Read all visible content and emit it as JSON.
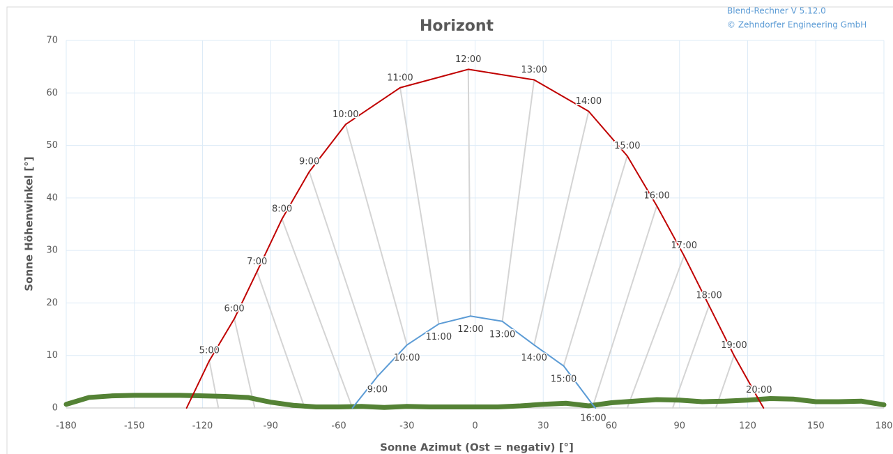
{
  "chart_data": {
    "type": "line",
    "title": "Horizont",
    "header_lines": [
      "Blend-Rechner   V 5.12.0",
      "© Zehndorfer Engineering GmbH"
    ],
    "xlabel": "Sonne Azimut (Ost = negativ) [°]",
    "ylabel": "Sonne Höhenwinkel [°]",
    "xlim": [
      -180,
      180
    ],
    "ylim": [
      0,
      70
    ],
    "xticks": [
      -180,
      -150,
      -120,
      -90,
      -60,
      -30,
      0,
      30,
      60,
      90,
      120,
      150,
      180
    ],
    "yticks": [
      0,
      10,
      20,
      30,
      40,
      50,
      60,
      70
    ],
    "grid": true,
    "hour_lines": {
      "color": "#d4d4d4",
      "lines": [
        {
          "x": [
            -117,
            -113
          ],
          "values": [
            9,
            0
          ]
        },
        {
          "x": [
            -106,
            -97
          ],
          "values": [
            17,
            0
          ]
        },
        {
          "x": [
            -96,
            -75
          ],
          "values": [
            26,
            0
          ]
        },
        {
          "x": [
            -85,
            -54
          ],
          "values": [
            36,
            0
          ]
        },
        {
          "x": [
            -73,
            -43
          ],
          "values": [
            45,
            6
          ]
        },
        {
          "x": [
            -57,
            -30
          ],
          "values": [
            54,
            12
          ]
        },
        {
          "x": [
            -33,
            -16
          ],
          "values": [
            61,
            16
          ]
        },
        {
          "x": [
            -3,
            -2
          ],
          "values": [
            64.5,
            17.5
          ]
        },
        {
          "x": [
            26,
            12
          ],
          "values": [
            62.5,
            16.5
          ]
        },
        {
          "x": [
            50,
            26
          ],
          "values": [
            56.5,
            12
          ]
        },
        {
          "x": [
            67,
            39
          ],
          "values": [
            48,
            8
          ]
        },
        {
          "x": [
            80,
            52
          ],
          "values": [
            38.5,
            0.5
          ]
        },
        {
          "x": [
            92,
            67
          ],
          "values": [
            29,
            0
          ]
        },
        {
          "x": [
            103,
            87
          ],
          "values": [
            19.5,
            0
          ]
        },
        {
          "x": [
            114,
            106
          ],
          "values": [
            10,
            0
          ]
        }
      ]
    },
    "horizon": {
      "color": "#548235",
      "x": [
        -180,
        -170,
        -160,
        -150,
        -140,
        -130,
        -120,
        -110,
        -100,
        -90,
        -80,
        -70,
        -60,
        -50,
        -40,
        -30,
        -20,
        -10,
        0,
        10,
        20,
        30,
        40,
        50,
        60,
        70,
        80,
        90,
        100,
        110,
        120,
        130,
        140,
        150,
        160,
        170,
        180
      ],
      "values": [
        0.7,
        2,
        2.3,
        2.4,
        2.4,
        2.4,
        2.3,
        2.2,
        2,
        1.1,
        0.5,
        0.2,
        0.2,
        0.3,
        0.1,
        0.3,
        0.2,
        0.2,
        0.2,
        0.2,
        0.4,
        0.7,
        0.9,
        0.4,
        1,
        1.3,
        1.6,
        1.5,
        1.2,
        1.3,
        1.5,
        1.8,
        1.7,
        1.2,
        1.2,
        1.3,
        0.6
      ]
    },
    "series": [
      {
        "color": "#c00000",
        "x": [
          -127,
          -117,
          -106,
          -96,
          -85,
          -73,
          -57,
          -33,
          -3,
          26,
          50,
          67,
          80,
          92,
          103,
          114,
          125,
          127
        ],
        "values": [
          0,
          9,
          17,
          26,
          36,
          45,
          54,
          61,
          64.5,
          62.5,
          56.5,
          48,
          38.5,
          29,
          19.5,
          10,
          1.5,
          0
        ],
        "labels": [
          null,
          "5:00",
          "6:00",
          "7:00",
          "8:00",
          "9:00",
          "10:00",
          "11:00",
          "12:00",
          "13:00",
          "14:00",
          "15:00",
          "16:00",
          "17:00",
          "18:00",
          "19:00",
          "20:00",
          null
        ]
      },
      {
        "color": "#5b9bd5",
        "x": [
          -54,
          -43,
          -30,
          -16,
          -2,
          12,
          26,
          39,
          52,
          53
        ],
        "values": [
          0,
          6,
          12,
          16,
          17.5,
          16.5,
          12,
          8,
          0.5,
          0
        ],
        "labels": [
          null,
          "9:00",
          "10:00",
          "11:00",
          "12:00",
          "13:00",
          "14:00",
          "15:00",
          "16:00",
          null
        ]
      }
    ]
  }
}
